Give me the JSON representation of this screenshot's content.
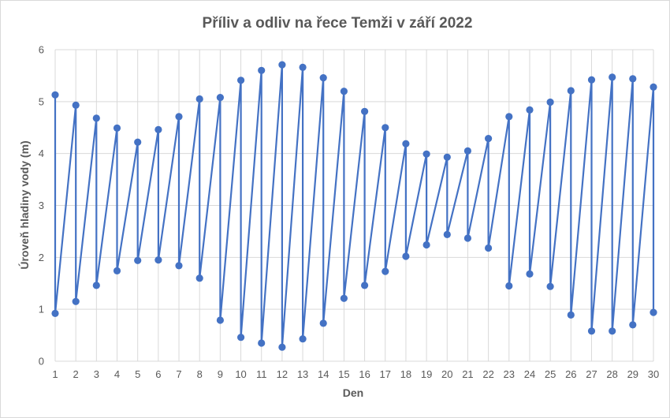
{
  "chart_data": {
    "type": "line",
    "title": "Příliv a odliv na řece Temži v září 2022",
    "xlabel": "Den",
    "ylabel": "Úroveň hladiny vody (m)",
    "xlim": [
      1,
      30
    ],
    "ylim": [
      0,
      6
    ],
    "x_ticks": [
      "1",
      "2",
      "3",
      "4",
      "5",
      "6",
      "7",
      "8",
      "9",
      "10",
      "11",
      "12",
      "13",
      "14",
      "15",
      "16",
      "17",
      "18",
      "19",
      "20",
      "21",
      "22",
      "23",
      "24",
      "25",
      "26",
      "27",
      "28",
      "29",
      "30"
    ],
    "y_ticks": [
      "0",
      "1",
      "2",
      "3",
      "4",
      "5",
      "6"
    ],
    "grid": "vertical and horizontal",
    "legend": "none",
    "line_color": "#4472c4",
    "grid_color": "#d9d9d9",
    "points": [
      [
        1,
        5.13
      ],
      [
        1,
        0.92
      ],
      [
        2,
        4.93
      ],
      [
        2,
        1.15
      ],
      [
        3,
        4.68
      ],
      [
        3,
        1.46
      ],
      [
        4,
        4.49
      ],
      [
        4,
        1.74
      ],
      [
        5,
        4.22
      ],
      [
        5,
        1.94
      ],
      [
        6,
        4.46
      ],
      [
        6,
        1.95
      ],
      [
        7,
        4.71
      ],
      [
        7,
        1.84
      ],
      [
        8,
        5.05
      ],
      [
        8,
        1.6
      ],
      [
        9,
        5.08
      ],
      [
        9,
        0.79
      ],
      [
        10,
        5.41
      ],
      [
        10,
        0.46
      ],
      [
        11,
        5.6
      ],
      [
        11,
        0.35
      ],
      [
        12,
        5.71
      ],
      [
        12,
        0.27
      ],
      [
        13,
        5.66
      ],
      [
        13,
        0.43
      ],
      [
        14,
        5.46
      ],
      [
        14,
        0.73
      ],
      [
        15,
        5.2
      ],
      [
        15,
        1.21
      ],
      [
        16,
        4.81
      ],
      [
        16,
        1.46
      ],
      [
        17,
        4.5
      ],
      [
        17,
        1.73
      ],
      [
        18,
        4.19
      ],
      [
        18,
        2.02
      ],
      [
        19,
        3.99
      ],
      [
        19,
        2.24
      ],
      [
        20,
        3.93
      ],
      [
        20,
        2.44
      ],
      [
        21,
        4.05
      ],
      [
        21,
        2.37
      ],
      [
        22,
        4.29
      ],
      [
        22,
        2.18
      ],
      [
        23,
        4.71
      ],
      [
        23,
        1.45
      ],
      [
        24,
        4.84
      ],
      [
        24,
        1.68
      ],
      [
        25,
        4.99
      ],
      [
        25,
        1.44
      ],
      [
        26,
        5.21
      ],
      [
        26,
        0.89
      ],
      [
        27,
        5.42
      ],
      [
        27,
        0.58
      ],
      [
        28,
        5.47
      ],
      [
        28,
        0.58
      ],
      [
        29,
        5.44
      ],
      [
        29,
        0.7
      ],
      [
        30,
        5.28
      ],
      [
        30,
        0.94
      ]
    ]
  }
}
